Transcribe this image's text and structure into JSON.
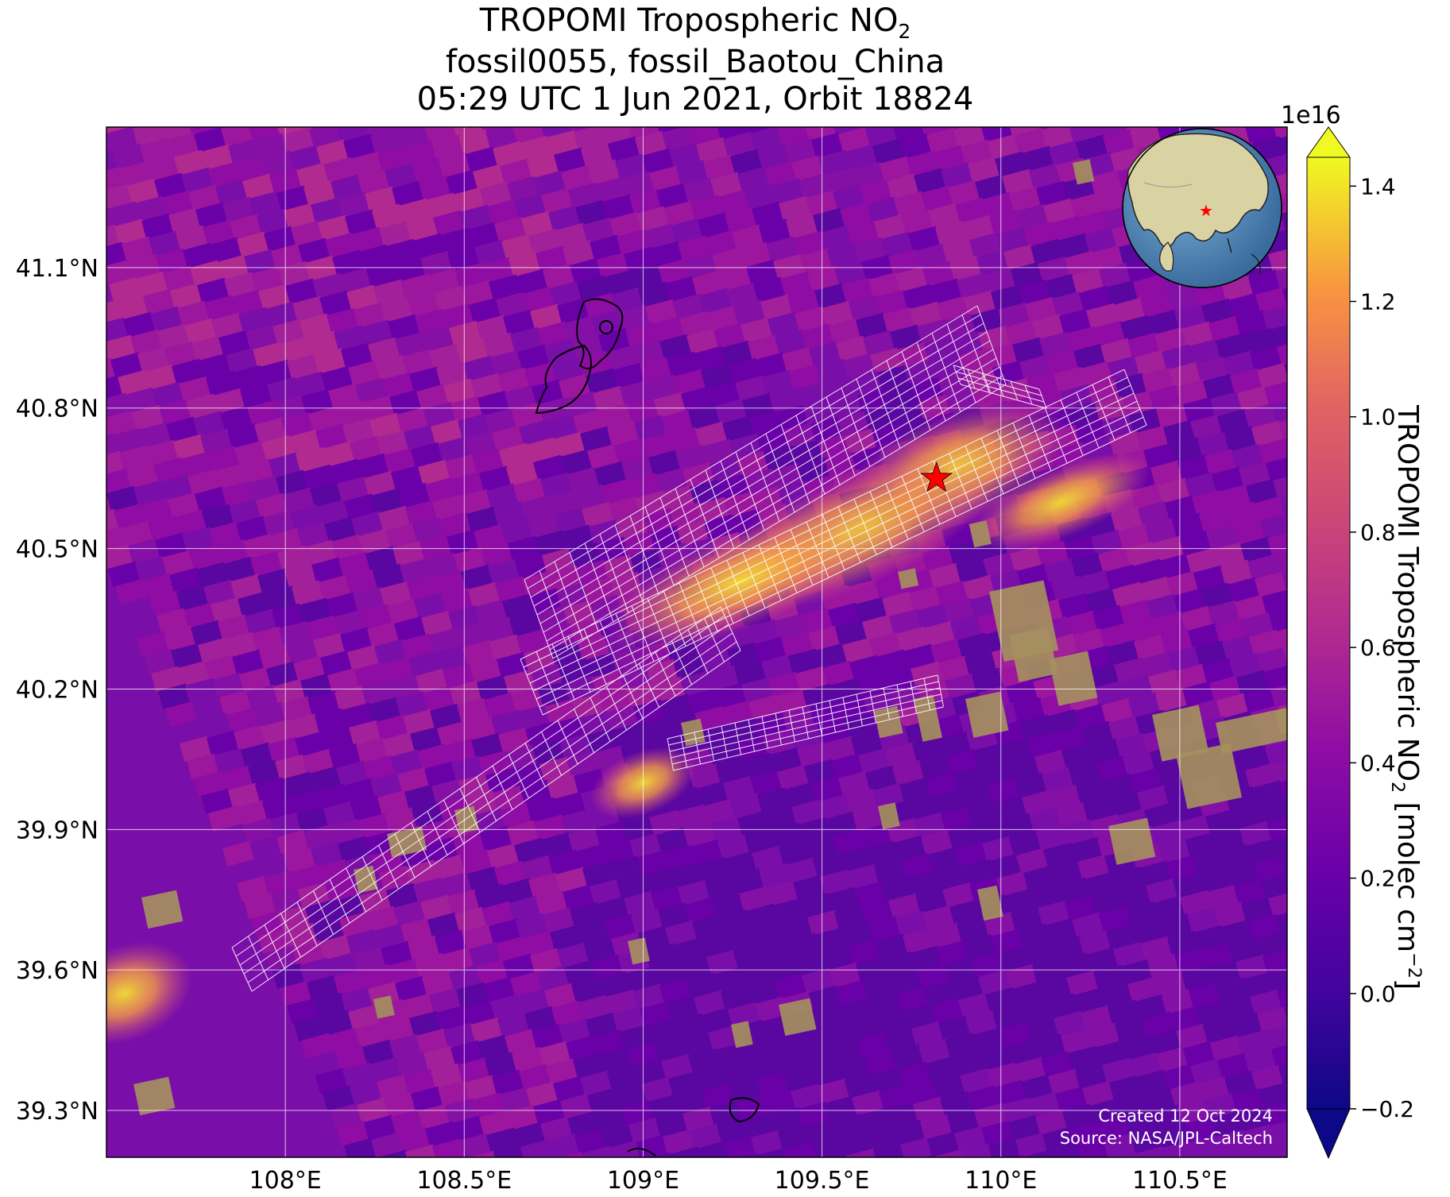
{
  "title": {
    "line1_prefix": "TROPOMI Tropospheric NO",
    "line1_sub": "2",
    "line2": "fossil0055, fossil_Baotou_China",
    "line3": "05:29 UTC 1 Jun 2021, Orbit 18824"
  },
  "map": {
    "lon_ticks": [
      "108°E",
      "108.5°E",
      "109°E",
      "109.5°E",
      "110°E",
      "110.5°E"
    ],
    "lon_values": [
      108.0,
      108.5,
      109.0,
      109.5,
      110.0,
      110.5
    ],
    "lat_ticks": [
      "41.1°N",
      "40.8°N",
      "40.5°N",
      "40.2°N",
      "39.9°N",
      "39.6°N",
      "39.3°N"
    ],
    "lat_values": [
      41.1,
      40.8,
      40.5,
      40.2,
      39.9,
      39.6,
      39.3
    ],
    "lon_range": [
      107.5,
      110.8
    ],
    "lat_range": [
      39.2,
      41.4
    ],
    "target_marker": {
      "lon": 109.82,
      "lat": 40.65,
      "color": "#ff0000"
    },
    "grid": true,
    "colormap": "plasma"
  },
  "colorbar": {
    "exponent": "1e16",
    "ticks": [
      "1.4",
      "1.2",
      "1.0",
      "0.8",
      "0.6",
      "0.4",
      "0.2",
      "0.0",
      "−0.2"
    ],
    "tick_values": [
      1.4,
      1.2,
      1.0,
      0.8,
      0.6,
      0.4,
      0.2,
      0.0,
      -0.2
    ],
    "range": [
      -0.2,
      1.45
    ],
    "label_prefix": "TROPOMI Tropospheric NO",
    "label_sub": "2",
    "label_unit": " [molec cm",
    "label_sup": "−2",
    "label_end": "]"
  },
  "notes": {
    "created": "Created 12 Oct 2024",
    "source": "Source: NASA/JPL-Caltech"
  }
}
